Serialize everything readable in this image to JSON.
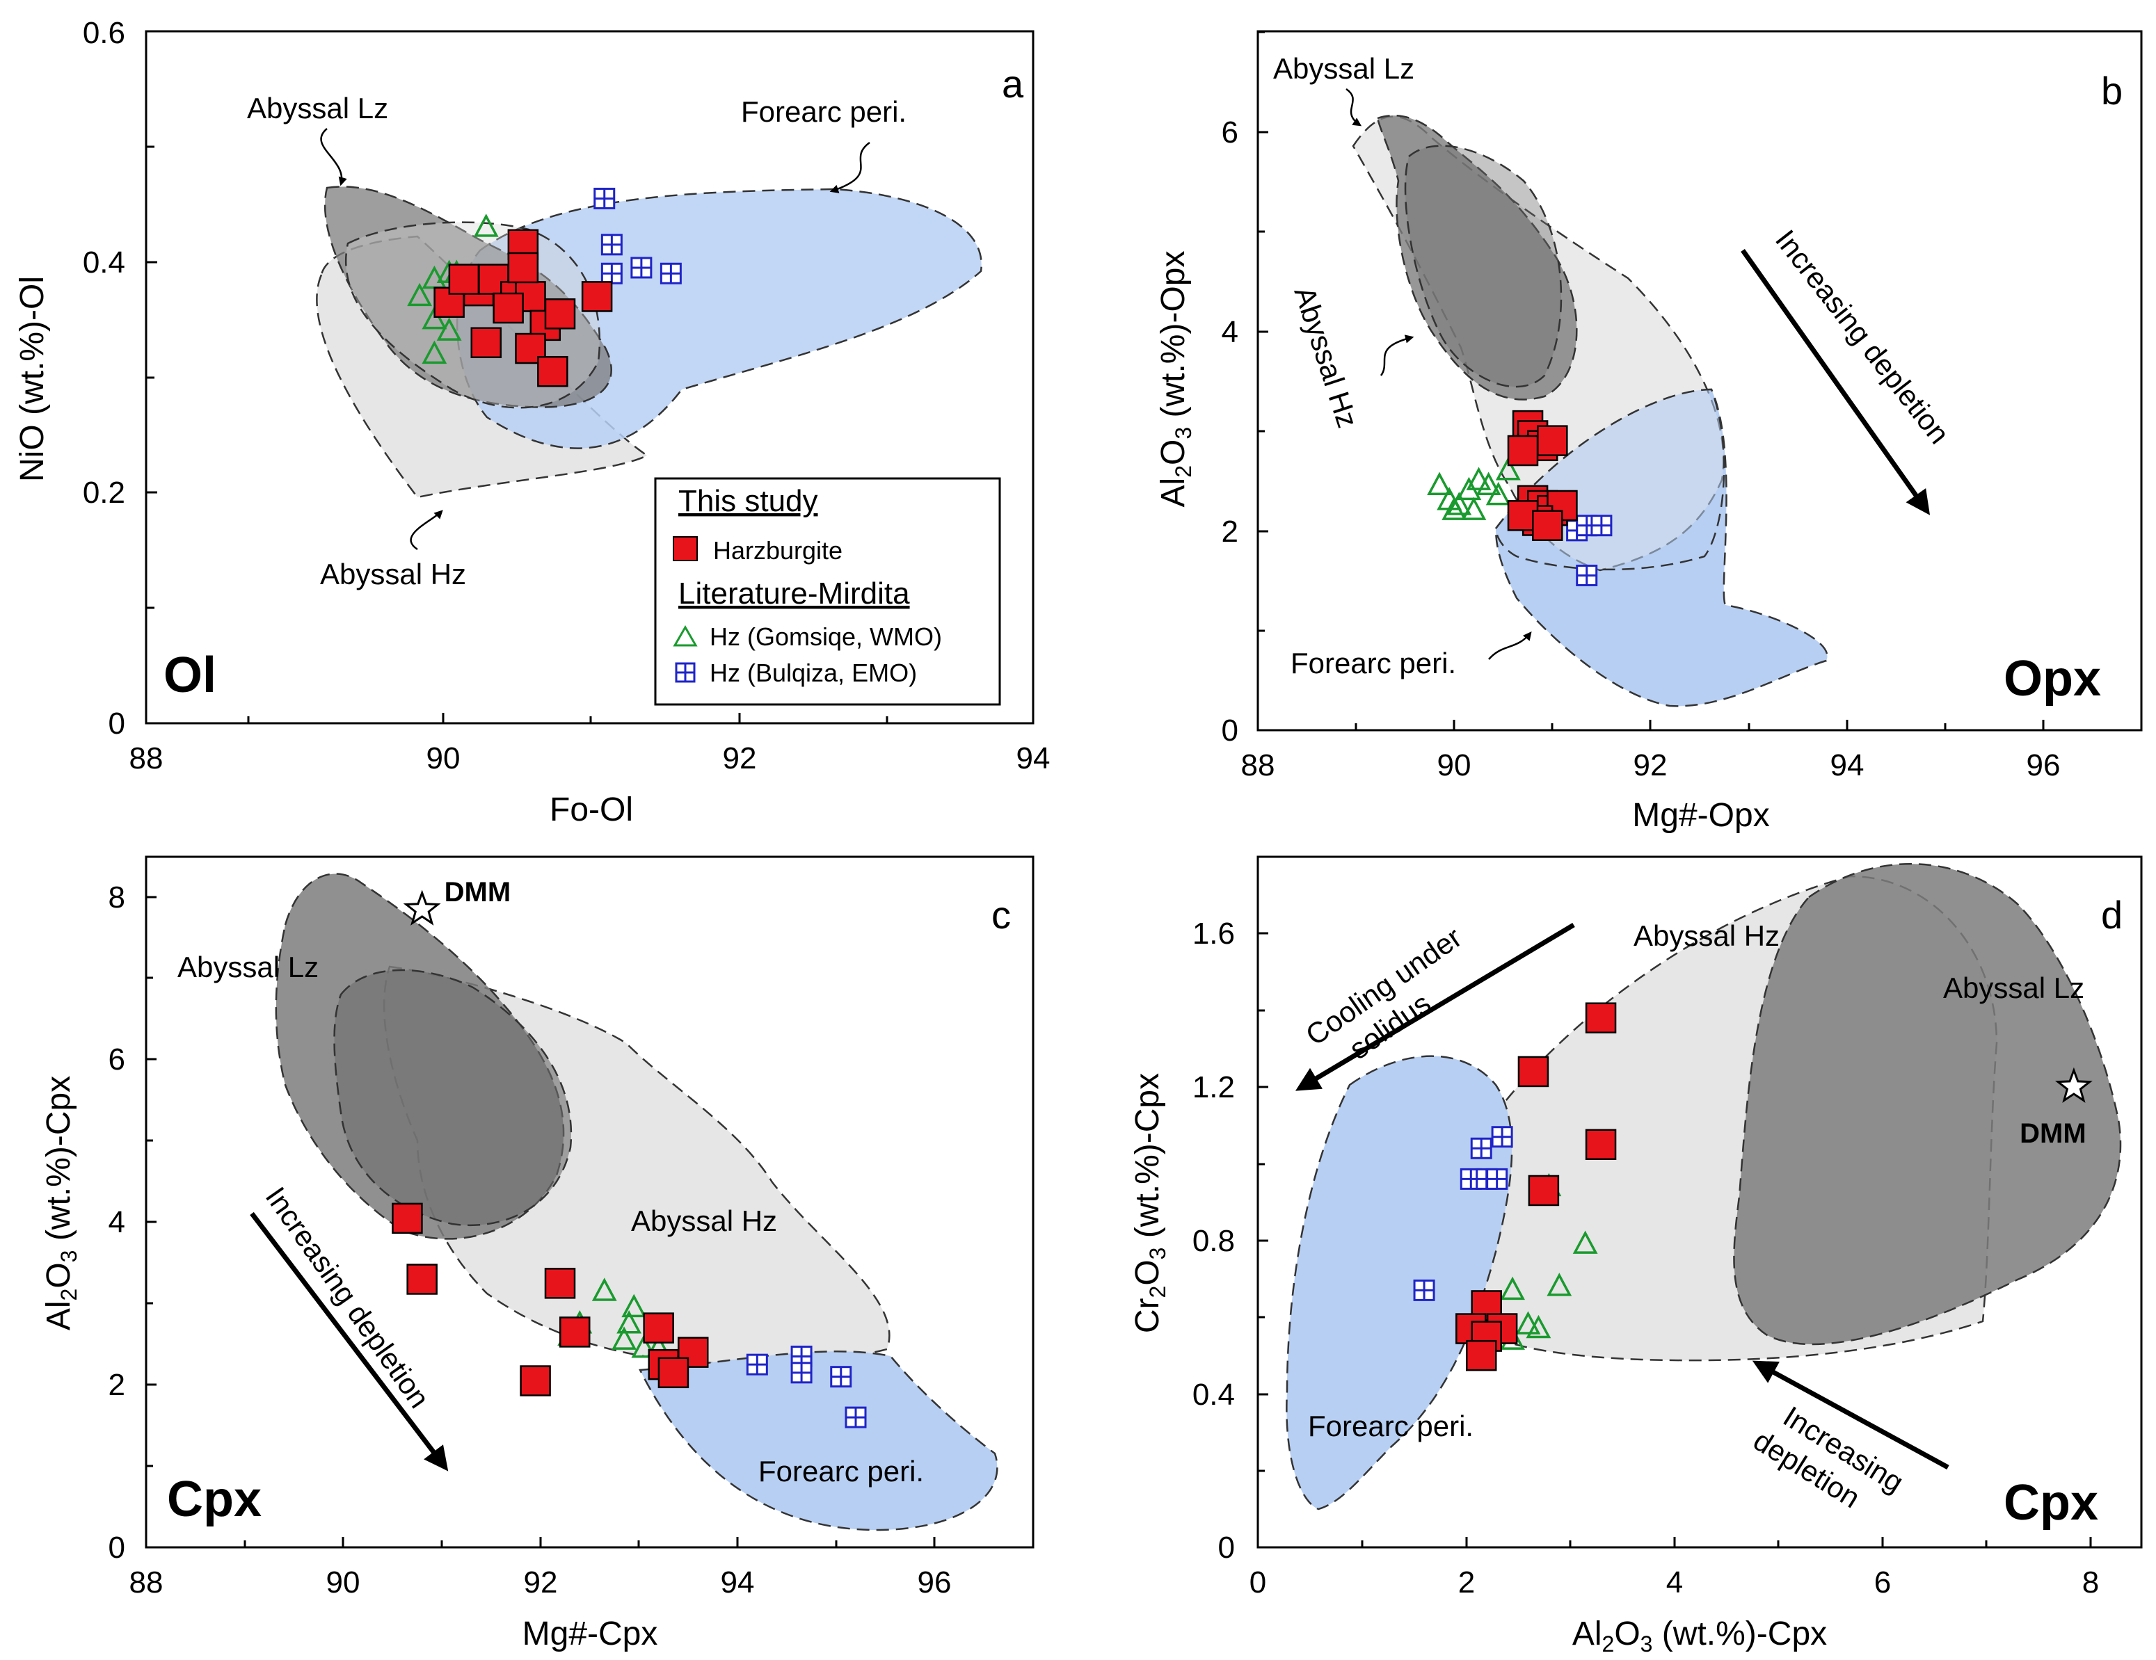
{
  "colors": {
    "harzburgite": "#e8141c",
    "gomsiqe": "#1a9a2e",
    "bulqiza": "#1f24c8",
    "field_dark": "#8f8f8f",
    "field_light": "#e6e6e6",
    "field_blue": "#b7cff3"
  },
  "legend": {
    "header1": "This study",
    "harzburgite": "Harzburgite",
    "header2": "Literature-Mirdita",
    "gomsiqe": "Hz (Gomsiqe, WMO)",
    "bulqiza": "Hz (Bulqiza, EMO)"
  },
  "chart_data": [
    {
      "panel": "a",
      "type": "scatter",
      "mineral": "Ol",
      "xlabel": "Fo-Ol",
      "ylabel": "NiO (wt.%)-Ol",
      "xlim": [
        88,
        94
      ],
      "ylim": [
        0,
        0.6
      ],
      "xticks": [
        88,
        90,
        92,
        94
      ],
      "yticks": [
        0,
        0.2,
        0.4,
        0.6
      ],
      "ytick_labels": [
        "0",
        "0.2",
        "0.4",
        "0.6"
      ],
      "field_labels": [
        "Abyssal Lz",
        "Forearc peri.",
        "Abyssal Hz"
      ],
      "series": [
        {
          "name": "Harzburgite",
          "marker": "square",
          "x": [
            90.05,
            90.25,
            90.35,
            90.5,
            90.55,
            90.6,
            90.7,
            90.8,
            90.3,
            90.45,
            90.6,
            90.75,
            91.05,
            90.15,
            90.55
          ],
          "y": [
            0.365,
            0.375,
            0.385,
            0.37,
            0.415,
            0.37,
            0.345,
            0.355,
            0.33,
            0.36,
            0.325,
            0.305,
            0.37,
            0.385,
            0.395
          ]
        },
        {
          "name": "Hz (Gomsiqe, WMO)",
          "marker": "triangle",
          "x": [
            89.85,
            89.95,
            90.05,
            90.1,
            89.95,
            90.05,
            90.3,
            90.15,
            89.95
          ],
          "y": [
            0.37,
            0.385,
            0.39,
            0.39,
            0.35,
            0.34,
            0.43,
            0.37,
            0.32
          ]
        },
        {
          "name": "Hz (Bulqiza, EMO)",
          "marker": "crossed-square",
          "x": [
            91.1,
            91.15,
            91.15,
            91.35,
            91.55
          ],
          "y": [
            0.455,
            0.415,
            0.39,
            0.395,
            0.39
          ]
        }
      ]
    },
    {
      "panel": "b",
      "type": "scatter",
      "mineral": "Opx",
      "xlabel": "Mg#-Opx",
      "ylabel": "Al2O3 (wt.%)-Opx",
      "xlim": [
        88,
        97
      ],
      "ylim": [
        0,
        7
      ],
      "xticks": [
        88,
        90,
        92,
        94,
        96
      ],
      "yticks": [
        0,
        2,
        4,
        6
      ],
      "field_labels": [
        "Abyssal Lz",
        "Abyssal Hz",
        "Forearc peri."
      ],
      "annotation": "Increasing depletion",
      "series": [
        {
          "name": "Harzburgite",
          "marker": "square",
          "x": [
            90.75,
            90.8,
            90.9,
            91.0,
            90.7,
            90.8,
            90.9,
            91.0,
            91.1,
            90.85,
            90.7,
            90.95
          ],
          "y": [
            3.05,
            2.95,
            2.85,
            2.9,
            2.8,
            2.3,
            2.25,
            2.2,
            2.25,
            2.1,
            2.15,
            2.05
          ]
        },
        {
          "name": "Hz (Gomsiqe, WMO)",
          "marker": "triangle",
          "x": [
            89.85,
            89.95,
            90.05,
            90.15,
            90.25,
            90.35,
            90.55,
            90.0,
            90.2,
            90.45
          ],
          "y": [
            2.45,
            2.3,
            2.25,
            2.4,
            2.5,
            2.45,
            2.6,
            2.2,
            2.2,
            2.35
          ]
        },
        {
          "name": "Hz (Bulqiza, EMO)",
          "marker": "crossed-square",
          "x": [
            91.25,
            91.35,
            91.5,
            91.35
          ],
          "y": [
            2.0,
            2.05,
            2.05,
            1.55
          ]
        }
      ]
    },
    {
      "panel": "c",
      "type": "scatter",
      "mineral": "Cpx",
      "xlabel": "Mg#-Cpx",
      "ylabel": "Al2O3 (wt.%)-Cpx",
      "xlim": [
        88,
        97
      ],
      "ylim": [
        0,
        8.5
      ],
      "xticks": [
        88,
        90,
        92,
        94,
        96
      ],
      "yticks": [
        0,
        2,
        4,
        6,
        8
      ],
      "field_labels": [
        "Abyssal Lz",
        "Abyssal Hz",
        "Forearc peri."
      ],
      "star": {
        "label": "DMM",
        "x": 90.8,
        "y": 7.85
      },
      "annotation": "Increasing depletion",
      "series": [
        {
          "name": "Harzburgite",
          "marker": "square",
          "x": [
            90.65,
            90.8,
            92.2,
            92.35,
            91.95,
            93.2,
            93.55,
            93.25,
            93.35
          ],
          "y": [
            4.05,
            3.3,
            3.25,
            2.65,
            2.05,
            2.7,
            2.4,
            2.25,
            2.15
          ]
        },
        {
          "name": "Hz (Gomsiqe, WMO)",
          "marker": "triangle",
          "x": [
            92.65,
            92.95,
            92.4,
            92.3,
            92.85,
            93.05,
            93.2,
            92.9
          ],
          "y": [
            3.15,
            2.95,
            2.75,
            2.6,
            2.55,
            2.45,
            2.45,
            2.75
          ]
        },
        {
          "name": "Hz (Bulqiza, EMO)",
          "marker": "crossed-square",
          "x": [
            94.2,
            94.65,
            94.65,
            95.05,
            95.2
          ],
          "y": [
            2.25,
            2.35,
            2.15,
            2.1,
            1.6
          ]
        }
      ]
    },
    {
      "panel": "d",
      "type": "scatter",
      "mineral": "Cpx",
      "xlabel": "Al2O3 (wt.%)-Cpx",
      "ylabel": "Cr2O3 (wt.%)-Cpx",
      "xlim": [
        0,
        8.5
      ],
      "ylim": [
        0,
        1.8
      ],
      "xticks": [
        0,
        2,
        4,
        6,
        8
      ],
      "yticks": [
        0,
        0.4,
        0.8,
        1.2,
        1.6
      ],
      "ytick_labels": [
        "0",
        "0.4",
        "0.8",
        "1.2",
        "1.6"
      ],
      "field_labels": [
        "Abyssal Hz",
        "Abyssal Lz",
        "Forearc peri."
      ],
      "star": {
        "label": "DMM",
        "x": 7.85,
        "y": 1.2
      },
      "annotation_cooling_1": "Cooling under",
      "annotation_cooling_2": "solidus",
      "annotation_depletion_1": "Increasing",
      "annotation_depletion_2": "depletion",
      "series": [
        {
          "name": "Harzburgite",
          "marker": "square",
          "x": [
            3.3,
            2.65,
            3.3,
            2.75,
            2.2,
            2.05,
            2.35,
            2.2,
            2.15
          ],
          "y": [
            1.38,
            1.24,
            1.05,
            0.93,
            0.63,
            0.57,
            0.57,
            0.55,
            0.5
          ]
        },
        {
          "name": "Hz (Gomsiqe, WMO)",
          "marker": "triangle",
          "x": [
            2.8,
            3.15,
            2.45,
            2.9,
            2.6,
            2.7,
            2.4,
            2.45
          ],
          "y": [
            0.94,
            0.79,
            0.67,
            0.68,
            0.58,
            0.57,
            0.56,
            0.54
          ]
        },
        {
          "name": "Hz (Bulqiza, EMO)",
          "marker": "crossed-square",
          "x": [
            2.35,
            2.15,
            2.05,
            2.2,
            2.3,
            1.6
          ],
          "y": [
            1.07,
            1.04,
            0.96,
            0.96,
            0.96,
            0.67
          ]
        }
      ]
    }
  ]
}
